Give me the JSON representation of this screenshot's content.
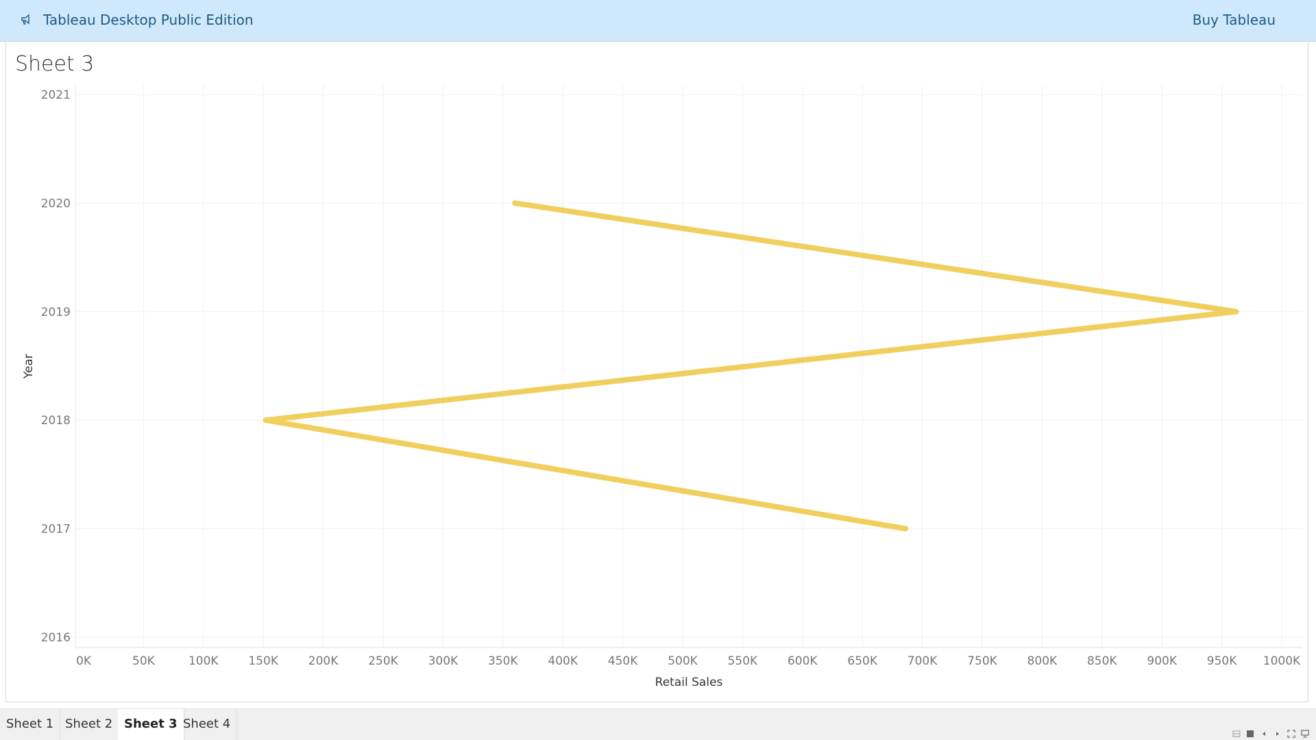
{
  "window": {
    "title": "Tableau Desktop Public Edition",
    "buy_label": "Buy Tableau"
  },
  "sheet": {
    "title": "Sheet 3"
  },
  "tabs": [
    {
      "label": "Sheet 1",
      "active": false
    },
    {
      "label": "Sheet 2",
      "active": false
    },
    {
      "label": "Sheet 3",
      "active": true
    },
    {
      "label": "Sheet 4",
      "active": false
    }
  ],
  "icons": {
    "logo": "megaphone-icon",
    "nav": [
      "show-filmstrip-icon",
      "show-tabs-icon",
      "previous-sheet-icon",
      "next-sheet-icon",
      "fit-width-icon",
      "presentation-mode-icon"
    ]
  },
  "colors": {
    "line": "#f0cf5e",
    "banner_bg": "#cfe8fb",
    "banner_text": "#1f5a85"
  },
  "chart_data": {
    "type": "line",
    "xlabel": "Retail Sales",
    "ylabel": "Year",
    "xlim": [
      0,
      1000000
    ],
    "ylim": [
      2016,
      2021
    ],
    "x_ticks": [
      "0K",
      "50K",
      "100K",
      "150K",
      "200K",
      "250K",
      "300K",
      "350K",
      "400K",
      "450K",
      "500K",
      "550K",
      "600K",
      "650K",
      "700K",
      "750K",
      "800K",
      "850K",
      "900K",
      "950K",
      "1000K"
    ],
    "y_ticks": [
      "2016",
      "2017",
      "2018",
      "2019",
      "2020",
      "2021"
    ],
    "grid": true,
    "series": [
      {
        "points": [
          {
            "year": 2017,
            "sales": 686000
          },
          {
            "year": 2018,
            "sales": 152000
          },
          {
            "year": 2019,
            "sales": 962000
          },
          {
            "year": 2020,
            "sales": 360000
          }
        ]
      }
    ]
  }
}
